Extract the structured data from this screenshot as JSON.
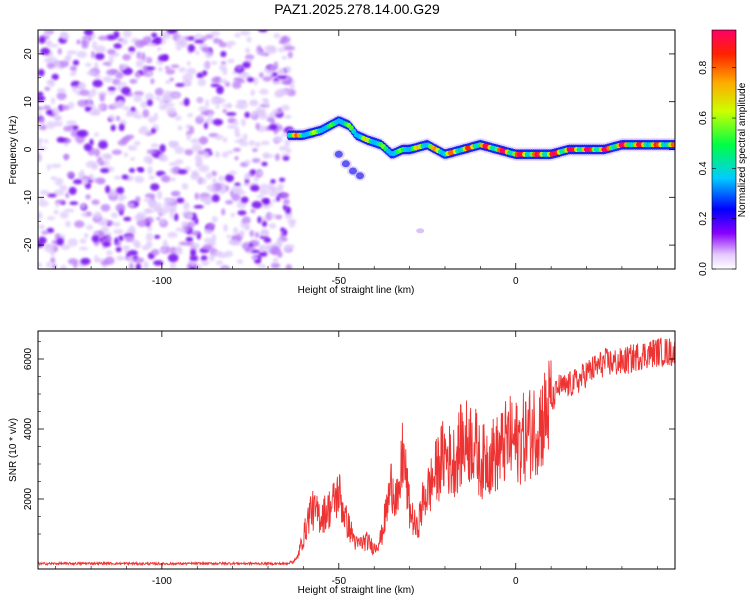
{
  "title": "PAZ1.2025.278.14.00.G29",
  "chart_data": [
    {
      "type": "heatmap",
      "name": "spectrogram",
      "xlabel": "Height of straight line (km)",
      "ylabel": "Frequency (Hz)",
      "xlim": [
        -135,
        45
      ],
      "ylim": [
        -25,
        25
      ],
      "xticks": [
        -100,
        -50,
        0
      ],
      "yticks": [
        -20,
        -10,
        0,
        10,
        20
      ],
      "noise_region_x": [
        -135,
        -63
      ],
      "signal_track": {
        "x": [
          -64,
          -60,
          -55,
          -50,
          -47,
          -45,
          -42,
          -38,
          -35,
          -32,
          -30,
          -25,
          -20,
          -15,
          -10,
          -5,
          0,
          5,
          10,
          15,
          20,
          25,
          30,
          35,
          40,
          45
        ],
        "freq": [
          3,
          3,
          4,
          6,
          5,
          3,
          2,
          1,
          -1,
          0,
          0,
          1,
          -1,
          0,
          1,
          0,
          -1,
          -1,
          -1,
          0,
          0,
          0,
          1,
          1,
          1,
          1
        ],
        "amplitude": [
          0.85,
          0.6,
          0.5,
          0.45,
          0.5,
          0.55,
          0.6,
          0.5,
          0.45,
          0.5,
          0.6,
          0.65,
          0.7,
          0.75,
          0.8,
          0.85,
          0.85,
          0.8,
          0.85,
          0.9,
          0.9,
          0.85,
          0.85,
          0.8,
          0.75,
          0.7
        ]
      },
      "secondary_branch": {
        "x": [
          -50,
          -48,
          -46,
          -44
        ],
        "freq": [
          -1,
          -3,
          -4.5,
          -5.5
        ]
      },
      "isolated_spot": {
        "x": -27,
        "freq": -17
      },
      "colorbar": {
        "label": "Normalized spectral amplitude",
        "ticks": [
          "0.0",
          "0.2",
          "0.4",
          "0.6",
          "0.8"
        ],
        "range": [
          0,
          0.95
        ]
      }
    },
    {
      "type": "line",
      "name": "snr",
      "xlabel": "Height of straight line (km)",
      "ylabel": "SNR (10 * v/v)",
      "xlim": [
        -135,
        45
      ],
      "ylim": [
        0,
        6800
      ],
      "xticks": [
        -100,
        -50,
        0
      ],
      "yticks": [
        2000,
        4000,
        6000
      ],
      "color": "#ee3333",
      "x": [
        -135,
        -120,
        -100,
        -80,
        -65,
        -62,
        -60,
        -58,
        -55,
        -52,
        -50,
        -48,
        -45,
        -42,
        -40,
        -38,
        -35,
        -33,
        -32,
        -30,
        -28,
        -26,
        -24,
        -22,
        -20,
        -18,
        -15,
        -12,
        -10,
        -8,
        -5,
        -2,
        0,
        3,
        5,
        8,
        10,
        12,
        14,
        16,
        18,
        20,
        25,
        30,
        35,
        40,
        45
      ],
      "y": [
        150,
        160,
        150,
        160,
        150,
        250,
        900,
        1700,
        1500,
        1800,
        2200,
        1400,
        700,
        800,
        600,
        900,
        2500,
        1800,
        3400,
        1700,
        1100,
        2000,
        2400,
        2900,
        3300,
        3000,
        3600,
        3700,
        3000,
        3200,
        3300,
        3700,
        3600,
        3800,
        4000,
        4300,
        4700,
        5200,
        5200,
        5300,
        5400,
        5600,
        5900,
        5900,
        6100,
        6200,
        6200
      ]
    }
  ]
}
